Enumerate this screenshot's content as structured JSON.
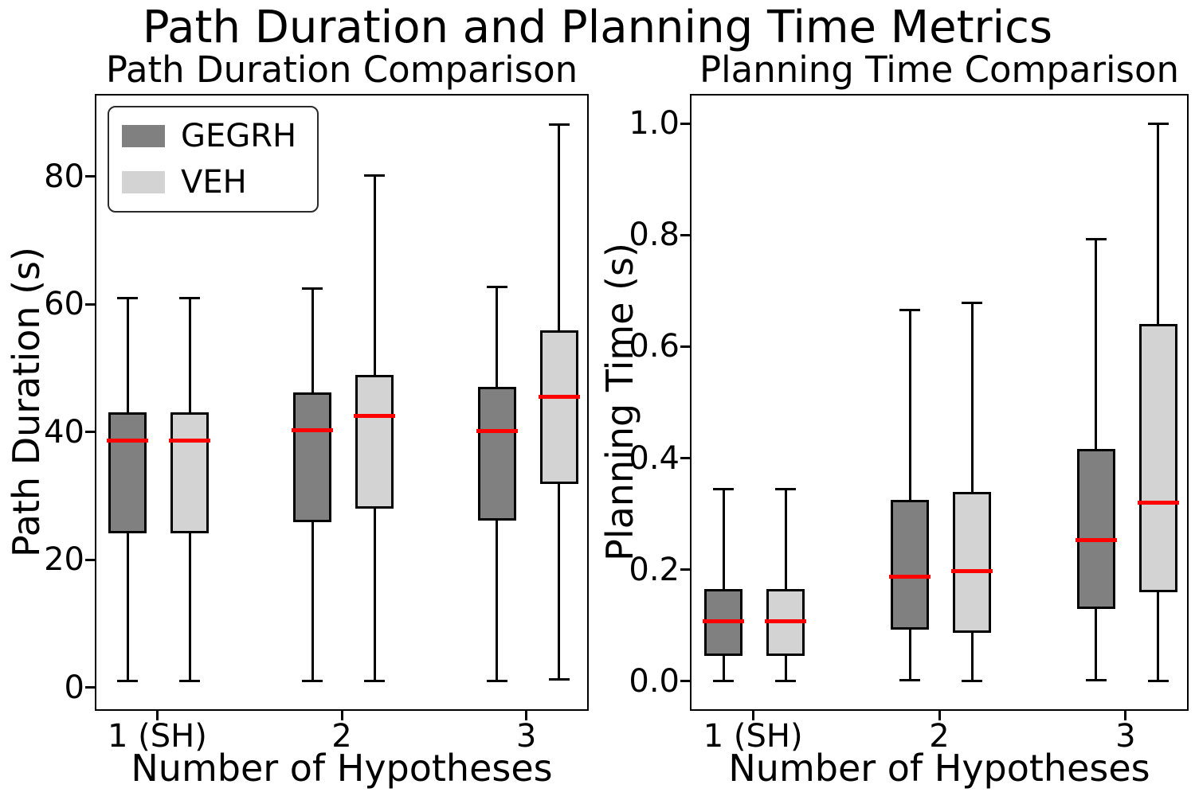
{
  "suptitle": "Path Duration and Planning Time Metrics",
  "chart_data": {
    "type": "boxplot",
    "layout": "1x2",
    "grid": false,
    "median_color": "#ff0000",
    "plots": [
      {
        "title": "Path Duration Comparison",
        "xlabel": "Number of Hypotheses",
        "ylabel": "Path Duration (s)",
        "categories": [
          "1 (SH)",
          "2",
          "3"
        ],
        "yticks": [
          0,
          20,
          40,
          60,
          80
        ],
        "ytick_labels": [
          "0",
          "20",
          "40",
          "60",
          "80"
        ],
        "ylim": [
          -3.4,
          92.7
        ],
        "legend": {
          "position": "upper left",
          "entries": [
            {
              "label": "GEGRH",
              "color": "#808080"
            },
            {
              "label": "VEH",
              "color": "#d3d3d3"
            }
          ]
        },
        "series": [
          {
            "name": "GEGRH",
            "color": "#808080",
            "boxes": [
              {
                "category": "1 (SH)",
                "whislo": 1.0,
                "q1": 24.2,
                "med": 38.7,
                "q3": 43.1,
                "whishi": 61.0
              },
              {
                "category": "2",
                "whislo": 1.0,
                "q1": 25.9,
                "med": 40.3,
                "q3": 46.2,
                "whishi": 62.5
              },
              {
                "category": "3",
                "whislo": 1.0,
                "q1": 26.1,
                "med": 40.2,
                "q3": 47.1,
                "whishi": 62.7
              }
            ]
          },
          {
            "name": "VEH",
            "color": "#d3d3d3",
            "boxes": [
              {
                "category": "1 (SH)",
                "whislo": 1.0,
                "q1": 24.2,
                "med": 38.7,
                "q3": 43.1,
                "whishi": 61.0
              },
              {
                "category": "2",
                "whislo": 1.0,
                "q1": 28.0,
                "med": 42.5,
                "q3": 49.0,
                "whishi": 80.2
              },
              {
                "category": "3",
                "whislo": 1.3,
                "q1": 31.9,
                "med": 45.5,
                "q3": 55.9,
                "whishi": 88.2
              }
            ]
          }
        ]
      },
      {
        "title": "Planning Time Comparison",
        "xlabel": "Number of Hypotheses",
        "ylabel": "Planning Time (s)",
        "categories": [
          "1 (SH)",
          "2",
          "3"
        ],
        "yticks": [
          0.0,
          0.2,
          0.4,
          0.6,
          0.8,
          1.0
        ],
        "ytick_labels": [
          "0.0",
          "0.2",
          "0.4",
          "0.6",
          "0.8",
          "1.0"
        ],
        "ylim": [
          -0.05,
          1.05
        ],
        "legend": null,
        "series": [
          {
            "name": "GEGRH",
            "color": "#808080",
            "boxes": [
              {
                "category": "1 (SH)",
                "whislo": 0.0,
                "q1": 0.045,
                "med": 0.108,
                "q3": 0.166,
                "whishi": 0.345
              },
              {
                "category": "2",
                "whislo": 0.002,
                "q1": 0.093,
                "med": 0.187,
                "q3": 0.325,
                "whishi": 0.665
              },
              {
                "category": "3",
                "whislo": 0.002,
                "q1": 0.13,
                "med": 0.253,
                "q3": 0.417,
                "whishi": 0.793
              }
            ]
          },
          {
            "name": "VEH",
            "color": "#d3d3d3",
            "boxes": [
              {
                "category": "1 (SH)",
                "whislo": 0.0,
                "q1": 0.045,
                "med": 0.108,
                "q3": 0.166,
                "whishi": 0.345
              },
              {
                "category": "2",
                "whislo": 0.0,
                "q1": 0.087,
                "med": 0.198,
                "q3": 0.34,
                "whishi": 0.678
              },
              {
                "category": "3",
                "whislo": 0.0,
                "q1": 0.16,
                "med": 0.32,
                "q3": 0.64,
                "whishi": 1.0
              }
            ]
          }
        ]
      }
    ]
  }
}
